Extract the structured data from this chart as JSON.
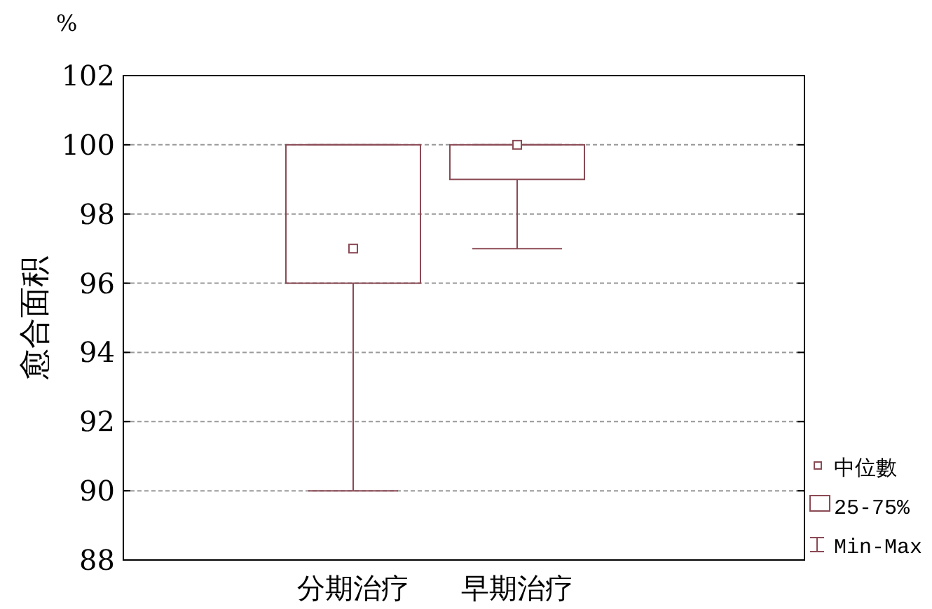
{
  "chart_data": {
    "type": "box",
    "ylabel": "愈合面积",
    "annotations": [
      "%",
      "中位數",
      "25-75%",
      "Min-Max"
    ],
    "categories": [
      "分期治疗",
      "早期治疗"
    ],
    "series": [
      {
        "color": "#8b4a55",
        "boxes": [
          {
            "low": 90,
            "q1": 96,
            "median": 97,
            "q3": 100,
            "high": 100
          },
          {
            "low": 97,
            "q1": 99,
            "median": 100,
            "q3": 100,
            "high": 100
          }
        ]
      }
    ],
    "ylim": [
      88,
      102
    ],
    "yticks": [
      88,
      90,
      92,
      94,
      96,
      98,
      100,
      102
    ],
    "grid": "y",
    "marker": "square"
  }
}
